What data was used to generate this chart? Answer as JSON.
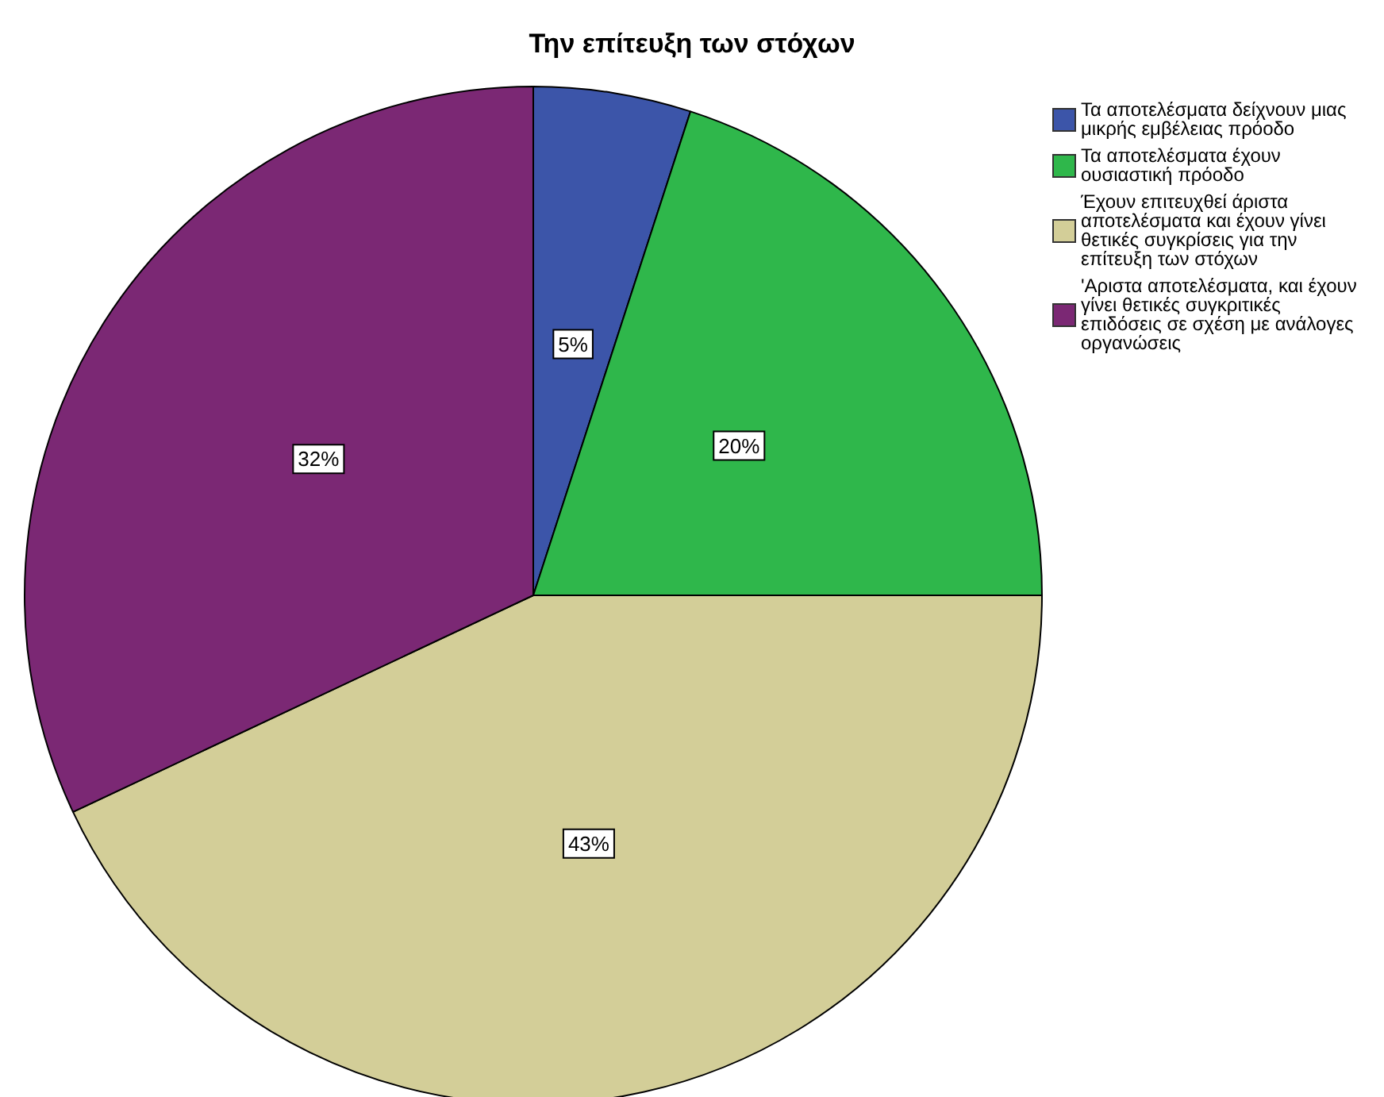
{
  "chart_data": {
    "type": "pie",
    "title": "Την επίτευξη των στόχων",
    "categories": [
      "Τα αποτελέσματα δείχνουν μιας μικρής εμβέλειας πρόοδο",
      "Τα αποτελέσματα έχουν ουσιαστική πρόοδο",
      "Έχουν επιτευχθεί άριστα αποτελέσματα και έχουν γίνει θετικές συγκρίσεις για την επίτευξη των στόχων",
      "'Αριστα αποτελέσματα, και έχουν γίνει θετικές συγκριτικές επιδόσεις σε σχέση με ανάλογες οργανώσεις"
    ],
    "values": [
      5,
      20,
      43,
      32
    ],
    "colors": [
      "#3c55a9",
      "#2fb74b",
      "#d3ce98",
      "#7b2874"
    ],
    "value_labels": [
      "5%",
      "20%",
      "43%",
      "32%"
    ],
    "legend": "right"
  }
}
